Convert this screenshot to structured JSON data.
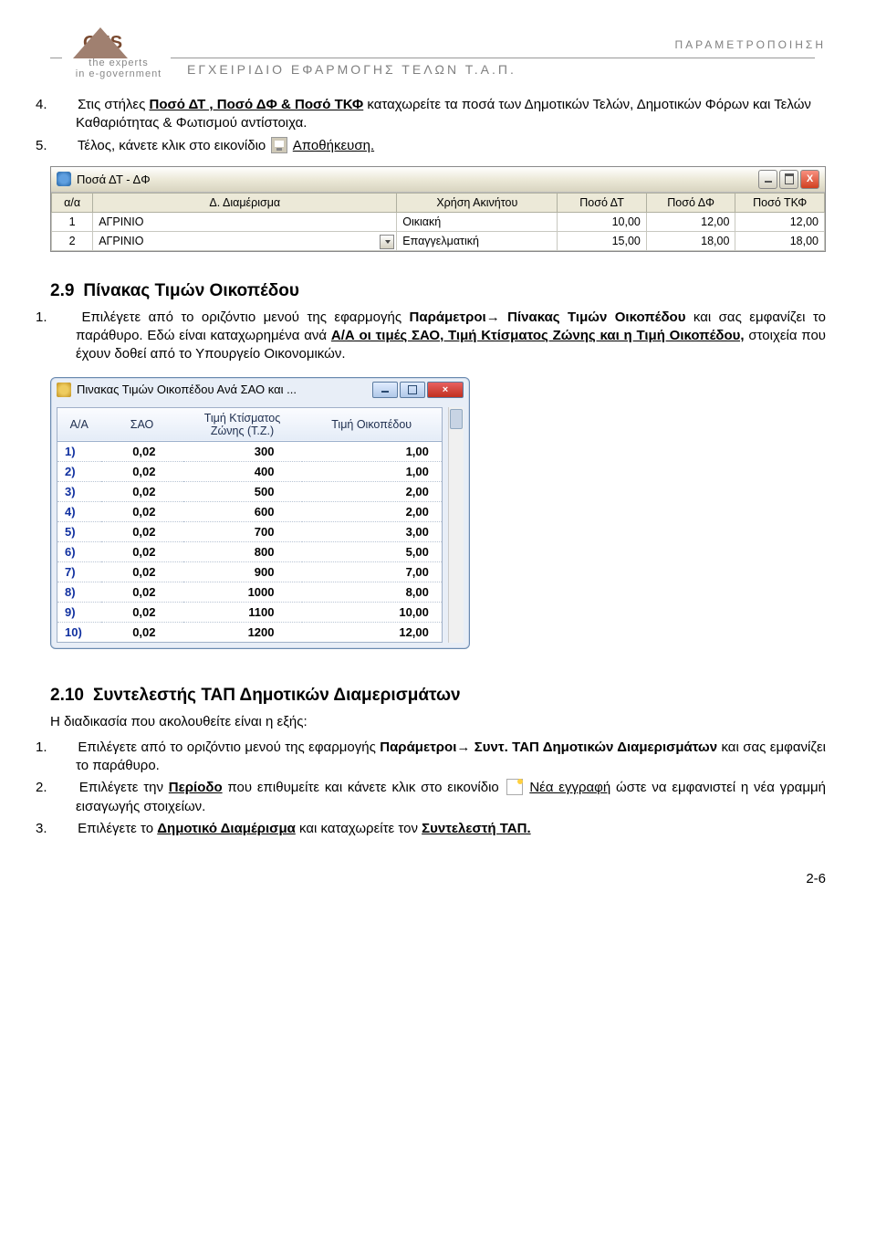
{
  "header": {
    "logoText": "OTS",
    "logoSub1": "the experts",
    "logoSub2": "in e-government",
    "manualTitle": "ΕΓΧΕΙΡΙΔΙΟ ΕΦΑΡΜΟΓΗΣ ΤΕΛΩΝ Τ.Α.Π.",
    "topRight": "ΠΑΡΑΜΕΤΡΟΠΟΙΗΣΗ"
  },
  "list1": {
    "item4_a": "Στις στήλες ",
    "item4_b": "Ποσό ΔΤ , Ποσό ΔΦ & Ποσό ΤΚΦ",
    "item4_c": " καταχωρείτε τα ποσά των Δημοτικών Τελών, Δημοτικών Φόρων και Τελών Καθαριότητας & Φωτισμού αντίστοιχα.",
    "item5_a": "Τέλος, κάνετε κλικ στο εικονίδιο ",
    "item5_b": "Αποθήκευση."
  },
  "win1": {
    "title": "Ποσά ΔΤ - ΔΦ",
    "columns": [
      "α/α",
      "Δ. Διαμέρισμα",
      "Χρήση Ακινήτου",
      "Ποσό ΔΤ",
      "Ποσό ΔΦ",
      "Ποσό ΤΚΦ"
    ],
    "rows": [
      {
        "aa": "1",
        "diam": "ΑΓΡΙΝΙΟ",
        "xrisi": "Οικιακή",
        "dt": "10,00",
        "df": "12,00",
        "tkf": "12,00",
        "dd": false
      },
      {
        "aa": "2",
        "diam": "ΑΓΡΙΝΙΟ",
        "xrisi": "Επαγγελματική",
        "dt": "15,00",
        "df": "18,00",
        "tkf": "18,00",
        "dd": true
      }
    ],
    "colWidths": {
      "aa": 38,
      "diam": 280,
      "xrisi": 148,
      "dt": 82,
      "df": 82,
      "tkf": 82
    }
  },
  "section29": {
    "num": "2.9",
    "title": "Πίνακας Τιμών Οικοπέδου",
    "p1_a": "Επιλέγετε από το οριζόντιο μενού της εφαρμογής ",
    "p1_b": "Παράμετροι",
    "p1_b2": "→",
    "p1_c": " Πίνακας Τιμών Οικοπέδου",
    "p1_d": " και σας εμφανίζει το παράθυρο. Εδώ είναι καταχωρημένα ανά ",
    "p1_e": "Α/Α οι τιμές ΣΑΟ, Τιμή Κτίσματος Ζώνης και η Τιμή Οικοπέδου,",
    "p1_f": " στοιχεία που έχουν δοθεί από το Υπουργείο Οικονομικών."
  },
  "win2": {
    "title": "Πινακας Τιμών Οικοπέδου Ανά ΣΑΟ και ...",
    "columns": [
      "Α/Α",
      "ΣΑΟ",
      "Τιμή Κτίσματος Ζώνης (Τ.Ζ.)",
      "Τιμή Οικοπέδου"
    ],
    "rows": [
      {
        "aa": "1)",
        "sao": "0,02",
        "tz": "300",
        "to": "1,00"
      },
      {
        "aa": "2)",
        "sao": "0,02",
        "tz": "400",
        "to": "1,00"
      },
      {
        "aa": "3)",
        "sao": "0,02",
        "tz": "500",
        "to": "2,00"
      },
      {
        "aa": "4)",
        "sao": "0,02",
        "tz": "600",
        "to": "2,00"
      },
      {
        "aa": "5)",
        "sao": "0,02",
        "tz": "700",
        "to": "3,00"
      },
      {
        "aa": "6)",
        "sao": "0,02",
        "tz": "800",
        "to": "5,00"
      },
      {
        "aa": "7)",
        "sao": "0,02",
        "tz": "900",
        "to": "7,00"
      },
      {
        "aa": "8)",
        "sao": "0,02",
        "tz": "1000",
        "to": "8,00"
      },
      {
        "aa": "9)",
        "sao": "0,02",
        "tz": "1100",
        "to": "10,00"
      },
      {
        "aa": "10)",
        "sao": "0,02",
        "tz": "1200",
        "to": "12,00"
      }
    ]
  },
  "section210": {
    "num": "2.10",
    "title": "Συντελεστής ΤΑΠ Δημοτικών Διαμερισμάτων",
    "intro": "Η διαδικασία που ακολουθείτε είναι η εξής:",
    "i1_a": "Επιλέγετε από το οριζόντιο μενού της εφαρμογής ",
    "i1_b": "Παράμετροι",
    "i1_b2": "→",
    "i1_c": " Συντ. ΤΑΠ Δημοτικών Διαμερισμάτων",
    "i1_d": " και σας εμφανίζει το παράθυρο.",
    "i2_a": "Επιλέγετε την ",
    "i2_b": "Περίοδο",
    "i2_c": " που επιθυμείτε και κάνετε κλικ στο εικονίδιο ",
    "i2_d": "Νέα εγγραφή",
    "i2_e": " ώστε να εμφανιστεί η νέα γραμμή εισαγωγής στοιχείων.",
    "i3_a": "Επιλέγετε το ",
    "i3_b": "Δημοτικό Διαμέρισμα",
    "i3_c": " και καταχωρείτε τον ",
    "i3_d": "Συντελεστή ΤΑΠ."
  },
  "pageNum": "2-6"
}
